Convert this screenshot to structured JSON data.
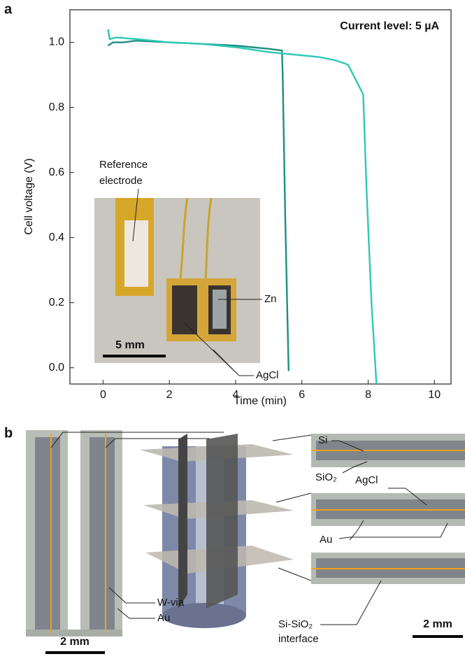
{
  "chart_data": {
    "type": "line",
    "panel_label": "a",
    "annotation": "Current level: 5 µA",
    "x_label": "Time (min)",
    "y_label": "Cell voltage (V)",
    "xlim": [
      -1,
      10.5
    ],
    "ylim": [
      -0.05,
      1.1
    ],
    "xticks": [
      0,
      2,
      4,
      6,
      8,
      10
    ],
    "yticks": [
      {
        "value": 0,
        "label": "0.0"
      },
      {
        "value": 0.2,
        "label": "0.2"
      },
      {
        "value": 0.4,
        "label": "0.4"
      },
      {
        "value": 0.6,
        "label": "0.6"
      },
      {
        "value": 0.8,
        "label": "0.8"
      },
      {
        "value": 1,
        "label": "1.0"
      }
    ],
    "series": [
      {
        "color": "#1b8f7f",
        "x": [
          0.15,
          0.3,
          0.6,
          1.0,
          2.0,
          3.0,
          4.0,
          4.5,
          5.0,
          5.4,
          5.42,
          5.5,
          5.6
        ],
        "values": [
          0.99,
          1.0,
          1.0,
          1.005,
          1.0,
          0.995,
          0.99,
          0.985,
          0.98,
          0.975,
          0.9,
          0.45,
          -0.01
        ]
      },
      {
        "color": "#2cc8b8",
        "x": [
          0.15,
          0.2,
          0.4,
          1.0,
          2.0,
          3.0,
          4.0,
          5.0,
          5.5,
          6.0,
          6.5,
          7.0,
          7.3,
          7.4,
          7.6,
          7.75,
          7.85,
          7.95,
          8.1,
          8.25
        ],
        "values": [
          1.04,
          1.01,
          1.015,
          1.01,
          1.0,
          0.995,
          0.985,
          0.97,
          0.965,
          0.96,
          0.955,
          0.945,
          0.935,
          0.93,
          0.89,
          0.86,
          0.84,
          0.55,
          0.2,
          -0.05
        ]
      }
    ]
  },
  "inset": {
    "reference": [
      "Reference",
      "electrode"
    ],
    "zn": "Zn",
    "agcl": "AgCl",
    "scale": "5 mm"
  },
  "panel_b": {
    "panel_label": "b",
    "si": "Si",
    "sio2": "SiO₂",
    "agcl": "AgCl",
    "au_right": "Au",
    "w_via": "W-via",
    "au_left": "Au",
    "interface": [
      "Si-SiO₂",
      "interface"
    ],
    "scale_left": "2 mm",
    "scale_right": "2 mm"
  }
}
